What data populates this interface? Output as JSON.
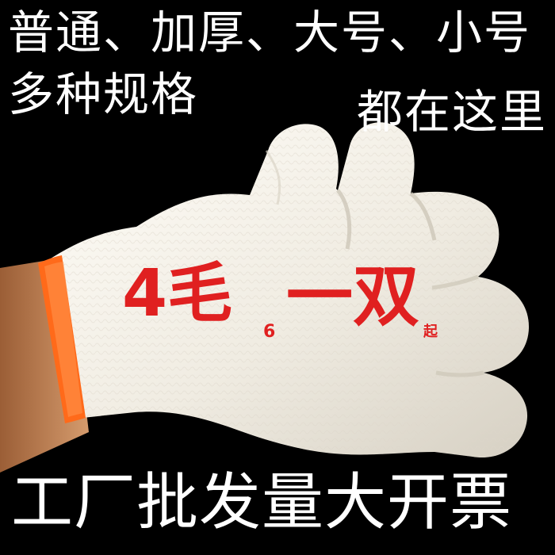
{
  "headline": {
    "line_1": "普通、加厚、大号、小号",
    "line_2": "多种规格",
    "line_3": "都在这里"
  },
  "price": {
    "main_a": "4毛",
    "superscript": "6",
    "main_b": "一双",
    "suffix": "起"
  },
  "footer": {
    "line": "工厂批发量大开票"
  },
  "colors": {
    "background": "#000000",
    "text_white": "#ffffff",
    "price_red": "#e02020",
    "glove_cream": "#f1efe8",
    "cuff_orange": "#ff6a1a",
    "skin": "#c98d5d"
  }
}
